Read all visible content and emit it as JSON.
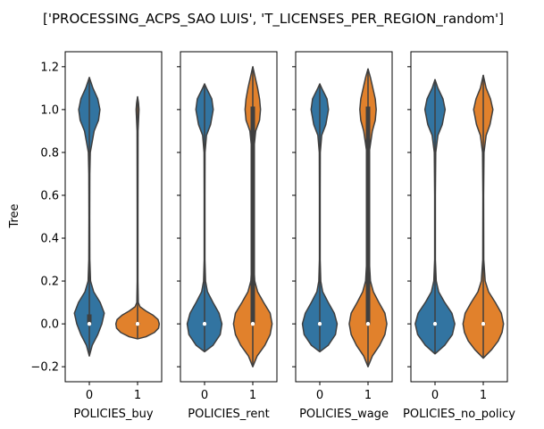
{
  "figure_title": "['PROCESSING_ACPS_SAO LUIS', 'T_LICENSES_PER_REGION_random']",
  "ylabel": "Tree",
  "colors": {
    "group0": "#3274a1",
    "group1": "#e1812c",
    "inner": "#3f3f3f",
    "median": "#ffffff"
  },
  "yticks": [
    "1.2",
    "1.0",
    "0.8",
    "0.6",
    "0.4",
    "0.2",
    "0.0",
    "−0.2"
  ],
  "chart_data": [
    {
      "type": "violin",
      "xlabel": "POLICIES_buy",
      "categories": [
        "0",
        "1"
      ],
      "ylim": [
        -0.27,
        1.27
      ],
      "violins": [
        {
          "category": "0",
          "min": -0.15,
          "max": 1.15,
          "q1": 0.0,
          "q3": 0.04,
          "median": 0.0,
          "profile": [
            [
              -0.15,
              0.0
            ],
            [
              -0.1,
              0.12
            ],
            [
              -0.05,
              0.35
            ],
            [
              0.0,
              0.52
            ],
            [
              0.05,
              0.62
            ],
            [
              0.1,
              0.45
            ],
            [
              0.15,
              0.18
            ],
            [
              0.2,
              0.05
            ],
            [
              0.3,
              0.02
            ],
            [
              0.5,
              0.015
            ],
            [
              0.7,
              0.02
            ],
            [
              0.8,
              0.04
            ],
            [
              0.9,
              0.2
            ],
            [
              0.95,
              0.38
            ],
            [
              1.0,
              0.44
            ],
            [
              1.05,
              0.35
            ],
            [
              1.1,
              0.15
            ],
            [
              1.15,
              0.0
            ]
          ]
        },
        {
          "category": "1",
          "min": -0.07,
          "max": 1.06,
          "q1": 0.0,
          "q3": 0.0,
          "median": 0.0,
          "profile": [
            [
              -0.07,
              0.0
            ],
            [
              -0.06,
              0.35
            ],
            [
              -0.04,
              0.7
            ],
            [
              -0.02,
              0.87
            ],
            [
              0.0,
              0.9
            ],
            [
              0.02,
              0.85
            ],
            [
              0.04,
              0.65
            ],
            [
              0.06,
              0.35
            ],
            [
              0.08,
              0.1
            ],
            [
              0.1,
              0.03
            ],
            [
              0.2,
              0.015
            ],
            [
              0.5,
              0.015
            ],
            [
              0.9,
              0.02
            ],
            [
              1.0,
              0.06
            ],
            [
              1.03,
              0.04
            ],
            [
              1.06,
              0.0
            ]
          ]
        }
      ]
    },
    {
      "type": "violin",
      "xlabel": "POLICIES_rent",
      "categories": [
        "0",
        "1"
      ],
      "ylim": [
        -0.27,
        1.27
      ],
      "violins": [
        {
          "category": "0",
          "min": -0.13,
          "max": 1.12,
          "q1": 0.0,
          "q3": 0.0,
          "median": 0.0,
          "profile": [
            [
              -0.13,
              0.0
            ],
            [
              -0.1,
              0.35
            ],
            [
              -0.05,
              0.65
            ],
            [
              0.0,
              0.72
            ],
            [
              0.05,
              0.6
            ],
            [
              0.1,
              0.35
            ],
            [
              0.15,
              0.12
            ],
            [
              0.2,
              0.04
            ],
            [
              0.3,
              0.015
            ],
            [
              0.6,
              0.015
            ],
            [
              0.8,
              0.02
            ],
            [
              0.88,
              0.08
            ],
            [
              0.93,
              0.25
            ],
            [
              1.0,
              0.36
            ],
            [
              1.05,
              0.3
            ],
            [
              1.1,
              0.08
            ],
            [
              1.12,
              0.0
            ]
          ]
        },
        {
          "category": "1",
          "min": -0.2,
          "max": 1.2,
          "q1": 0.0,
          "q3": 1.01,
          "median": 0.0,
          "profile": [
            [
              -0.2,
              0.0
            ],
            [
              -0.15,
              0.18
            ],
            [
              -0.1,
              0.5
            ],
            [
              -0.05,
              0.72
            ],
            [
              0.0,
              0.8
            ],
            [
              0.05,
              0.72
            ],
            [
              0.1,
              0.45
            ],
            [
              0.15,
              0.2
            ],
            [
              0.2,
              0.08
            ],
            [
              0.3,
              0.03
            ],
            [
              0.5,
              0.02
            ],
            [
              0.8,
              0.03
            ],
            [
              0.9,
              0.12
            ],
            [
              0.95,
              0.28
            ],
            [
              1.0,
              0.32
            ],
            [
              1.05,
              0.28
            ],
            [
              1.1,
              0.2
            ],
            [
              1.15,
              0.1
            ],
            [
              1.2,
              0.0
            ]
          ]
        }
      ]
    },
    {
      "type": "violin",
      "xlabel": "POLICIES_wage",
      "categories": [
        "0",
        "1"
      ],
      "ylim": [
        -0.27,
        1.27
      ],
      "violins": [
        {
          "category": "0",
          "min": -0.13,
          "max": 1.12,
          "q1": 0.0,
          "q3": 0.0,
          "median": 0.0,
          "profile": [
            [
              -0.13,
              0.0
            ],
            [
              -0.1,
              0.35
            ],
            [
              -0.05,
              0.65
            ],
            [
              0.0,
              0.72
            ],
            [
              0.05,
              0.6
            ],
            [
              0.1,
              0.35
            ],
            [
              0.15,
              0.12
            ],
            [
              0.2,
              0.04
            ],
            [
              0.3,
              0.015
            ],
            [
              0.6,
              0.015
            ],
            [
              0.8,
              0.02
            ],
            [
              0.88,
              0.08
            ],
            [
              0.93,
              0.25
            ],
            [
              1.0,
              0.36
            ],
            [
              1.05,
              0.3
            ],
            [
              1.1,
              0.08
            ],
            [
              1.12,
              0.0
            ]
          ]
        },
        {
          "category": "1",
          "min": -0.2,
          "max": 1.19,
          "q1": 0.0,
          "q3": 1.01,
          "median": 0.0,
          "profile": [
            [
              -0.2,
              0.0
            ],
            [
              -0.15,
              0.18
            ],
            [
              -0.1,
              0.48
            ],
            [
              -0.05,
              0.7
            ],
            [
              0.0,
              0.78
            ],
            [
              0.05,
              0.7
            ],
            [
              0.1,
              0.45
            ],
            [
              0.15,
              0.22
            ],
            [
              0.2,
              0.1
            ],
            [
              0.3,
              0.05
            ],
            [
              0.5,
              0.04
            ],
            [
              0.8,
              0.05
            ],
            [
              0.9,
              0.18
            ],
            [
              0.95,
              0.3
            ],
            [
              1.0,
              0.34
            ],
            [
              1.05,
              0.3
            ],
            [
              1.1,
              0.2
            ],
            [
              1.15,
              0.1
            ],
            [
              1.19,
              0.0
            ]
          ]
        }
      ]
    },
    {
      "type": "violin",
      "xlabel": "POLICIES_no_policy",
      "categories": [
        "0",
        "1"
      ],
      "ylim": [
        -0.27,
        1.27
      ],
      "violins": [
        {
          "category": "0",
          "min": -0.14,
          "max": 1.14,
          "q1": 0.0,
          "q3": 0.0,
          "median": 0.0,
          "profile": [
            [
              -0.14,
              0.0
            ],
            [
              -0.1,
              0.4
            ],
            [
              -0.05,
              0.72
            ],
            [
              0.0,
              0.82
            ],
            [
              0.05,
              0.7
            ],
            [
              0.1,
              0.4
            ],
            [
              0.15,
              0.15
            ],
            [
              0.2,
              0.05
            ],
            [
              0.3,
              0.015
            ],
            [
              0.6,
              0.015
            ],
            [
              0.8,
              0.03
            ],
            [
              0.88,
              0.12
            ],
            [
              0.93,
              0.3
            ],
            [
              1.0,
              0.42
            ],
            [
              1.05,
              0.33
            ],
            [
              1.1,
              0.12
            ],
            [
              1.14,
              0.0
            ]
          ]
        },
        {
          "category": "1",
          "min": -0.16,
          "max": 1.16,
          "q1": 0.0,
          "q3": 0.0,
          "median": 0.0,
          "profile": [
            [
              -0.16,
              0.0
            ],
            [
              -0.12,
              0.35
            ],
            [
              -0.08,
              0.62
            ],
            [
              -0.04,
              0.78
            ],
            [
              0.0,
              0.84
            ],
            [
              0.05,
              0.75
            ],
            [
              0.1,
              0.5
            ],
            [
              0.15,
              0.22
            ],
            [
              0.2,
              0.08
            ],
            [
              0.3,
              0.02
            ],
            [
              0.6,
              0.015
            ],
            [
              0.8,
              0.03
            ],
            [
              0.88,
              0.12
            ],
            [
              0.93,
              0.28
            ],
            [
              1.0,
              0.4
            ],
            [
              1.05,
              0.3
            ],
            [
              1.1,
              0.12
            ],
            [
              1.16,
              0.0
            ]
          ]
        }
      ]
    }
  ]
}
